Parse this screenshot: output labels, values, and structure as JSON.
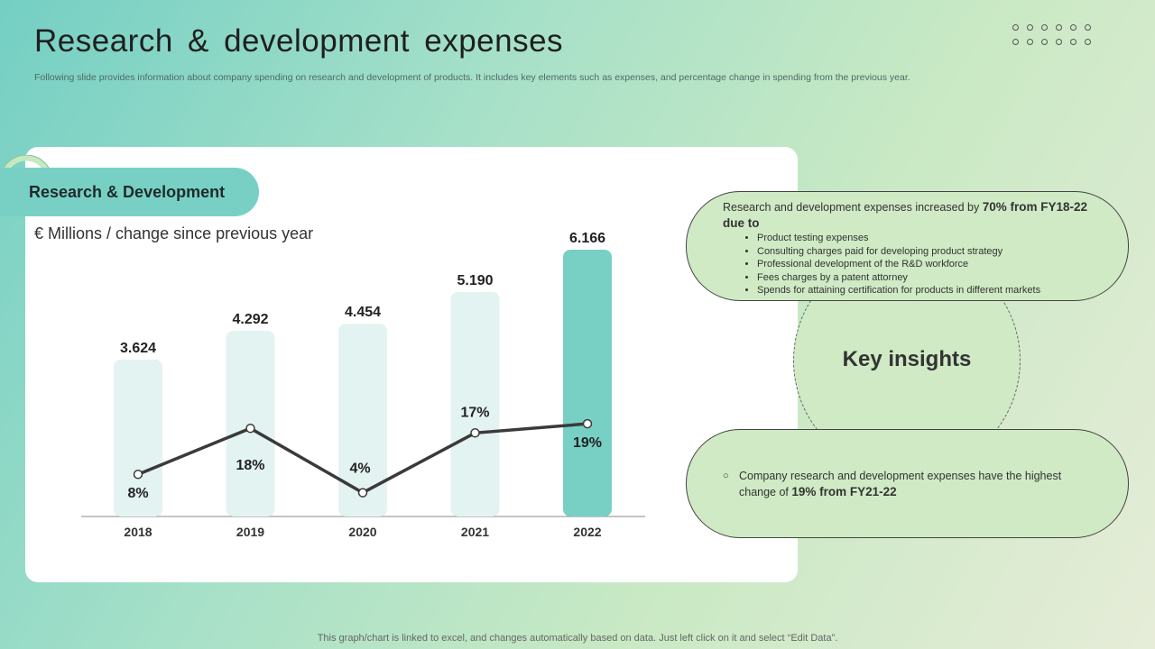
{
  "header": {
    "title": "Research & development expenses",
    "subtitle": "Following slide provides information about company spending on research and development of products. It includes key elements such as expenses, and percentage change in spending from the previous year."
  },
  "panel": {
    "label": "Research & Development",
    "unit_label": "€ Millions / change since previous year"
  },
  "chart_data": {
    "type": "bar",
    "categories": [
      "2018",
      "2019",
      "2020",
      "2021",
      "2022"
    ],
    "series": [
      {
        "values": [
          3.624,
          4.292,
          4.454,
          5.19,
          6.166
        ],
        "labels": [
          "3.624",
          "4.292",
          "4.454",
          "5.190",
          "6.166"
        ],
        "type": "bar"
      },
      {
        "values": [
          8,
          18,
          4,
          17,
          19
        ],
        "labels": [
          "8%",
          "18%",
          "4%",
          "17%",
          "19%"
        ],
        "type": "line"
      }
    ],
    "colors": {
      "bar": "#e3f3f1",
      "bar_highlight": "#78d0c5",
      "line": "#3a3a3a"
    },
    "highlight_index": 4
  },
  "insights": {
    "title": "Key insights",
    "top": {
      "lead_text": "Research and development  expenses increased by ",
      "lead_bold": "70% from FY18-22 due to",
      "bullets": [
        "Product testing expenses",
        "Consulting charges paid for developing product strategy",
        "Professional development of the R&D workforce",
        "Fees charges by a patent attorney",
        "Spends for attaining certification for products in different markets"
      ]
    },
    "bottom": {
      "bullet": "○",
      "text": "Company research and development  expenses have the highest change of ",
      "bold": "19% from FY21-22"
    }
  },
  "footer": "This graph/chart is linked to excel,  and changes automatically based on data. Just left click on it and select “Edit Data”."
}
